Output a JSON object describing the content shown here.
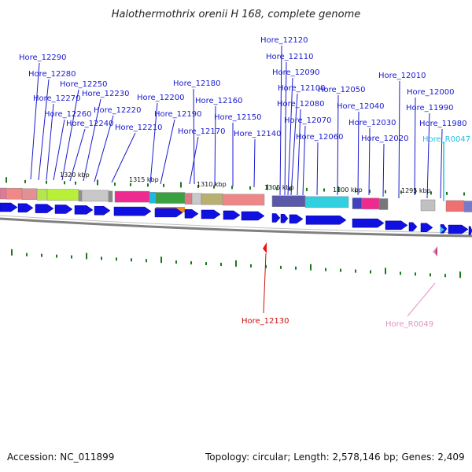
{
  "title": "Halothermothrix orenii H 168, complete genome",
  "accession_text": "Accession: NC_011899",
  "summary_text": "Topology: circular; Length: 2,578,146 bp; Genes: 2,409",
  "colors": {
    "gene_label": "#1a1ad0",
    "rna_label_cyan": "#22c0e8",
    "rna_label_pink": "#e890c0",
    "highlight_label_red": "#cc1111",
    "gene_arrow": "#1010e0",
    "tick_green": "#1a7a1a"
  },
  "gene_labels": [
    "Hore_12290",
    "Hore_12280",
    "Hore_12270",
    "Hore_12260",
    "Hore_12250",
    "Hore_12240",
    "Hore_12230",
    "Hore_12220",
    "Hore_12210",
    "Hore_12200",
    "Hore_12190",
    "Hore_12180",
    "Hore_12170",
    "Hore_12160",
    "Hore_12150",
    "Hore_12140",
    "Hore_12120",
    "Hore_12110",
    "Hore_12090",
    "Hore_12100",
    "Hore_12080",
    "Hore_12070",
    "Hore_12060",
    "Hore_12050",
    "Hore_12040",
    "Hore_12030",
    "Hore_12020",
    "Hore_12010",
    "Hore_12000",
    "Hore_11990",
    "Hore_11980",
    "Hore_R0047",
    "Hore_12130",
    "Hore_R0049"
  ],
  "scale_ticks": [
    "1320 kbp",
    "1315 kbp",
    "1310 kbp",
    "1305 kbp",
    "1300 kbp",
    "1295 kbp"
  ]
}
